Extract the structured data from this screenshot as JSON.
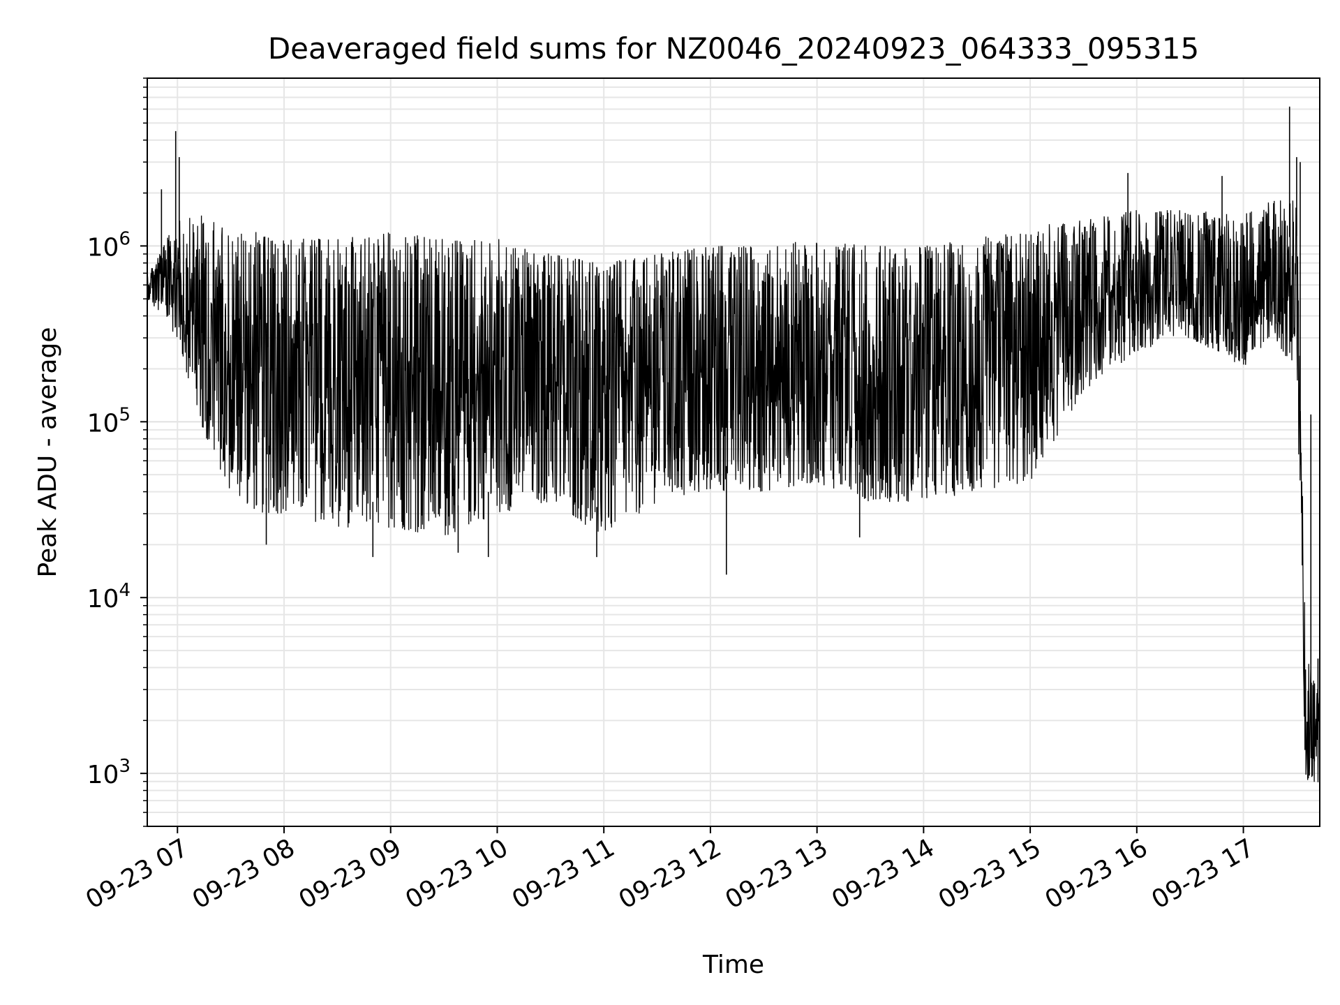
{
  "chart_data": {
    "type": "line",
    "title": "Deaveraged field sums for NZ0046_20240923_064333_095315",
    "xlabel": "Time",
    "ylabel": "Peak ADU - average",
    "y_scale": "log",
    "ylim": [
      500,
      9000000
    ],
    "xlim": [
      "2024-09-23 06:43",
      "2024-09-23 17:43"
    ],
    "grid": true,
    "line_color": "#000000",
    "x_ticks": [
      {
        "value": "2024-09-23 07:00",
        "label": "09-23 07"
      },
      {
        "value": "2024-09-23 08:00",
        "label": "09-23 08"
      },
      {
        "value": "2024-09-23 09:00",
        "label": "09-23 09"
      },
      {
        "value": "2024-09-23 10:00",
        "label": "09-23 10"
      },
      {
        "value": "2024-09-23 11:00",
        "label": "09-23 11"
      },
      {
        "value": "2024-09-23 12:00",
        "label": "09-23 12"
      },
      {
        "value": "2024-09-23 13:00",
        "label": "09-23 13"
      },
      {
        "value": "2024-09-23 14:00",
        "label": "09-23 14"
      },
      {
        "value": "2024-09-23 15:00",
        "label": "09-23 15"
      },
      {
        "value": "2024-09-23 16:00",
        "label": "09-23 16"
      },
      {
        "value": "2024-09-23 17:00",
        "label": "09-23 17"
      }
    ],
    "y_ticks": [
      {
        "value": 1000,
        "base": "10",
        "exp": "3"
      },
      {
        "value": 10000,
        "base": "10",
        "exp": "4"
      },
      {
        "value": 100000,
        "base": "10",
        "exp": "5"
      },
      {
        "value": 1000000,
        "base": "10",
        "exp": "6"
      }
    ],
    "envelope": {
      "x": [
        "2024-09-23 06:43",
        "2024-09-23 07:00",
        "2024-09-23 07:15",
        "2024-09-23 07:30",
        "2024-09-23 07:45",
        "2024-09-23 08:00",
        "2024-09-23 08:30",
        "2024-09-23 09:00",
        "2024-09-23 09:30",
        "2024-09-23 10:00",
        "2024-09-23 10:30",
        "2024-09-23 11:00",
        "2024-09-23 11:30",
        "2024-09-23 12:00",
        "2024-09-23 12:30",
        "2024-09-23 13:00",
        "2024-09-23 13:30",
        "2024-09-23 14:00",
        "2024-09-23 14:30",
        "2024-09-23 15:00",
        "2024-09-23 15:30",
        "2024-09-23 16:00",
        "2024-09-23 16:30",
        "2024-09-23 17:00",
        "2024-09-23 17:15",
        "2024-09-23 17:30",
        "2024-09-23 17:35",
        "2024-09-23 17:43"
      ],
      "high": [
        700000,
        1400000,
        1500000,
        1200000,
        1200000,
        1100000,
        1100000,
        1200000,
        1100000,
        1100000,
        900000,
        800000,
        900000,
        1000000,
        1000000,
        1100000,
        1000000,
        1000000,
        1100000,
        1300000,
        1400000,
        1600000,
        1600000,
        1500000,
        1800000,
        1900000,
        5000,
        3000
      ],
      "low": [
        500000,
        300000,
        80000,
        40000,
        30000,
        30000,
        25000,
        25000,
        22000,
        30000,
        35000,
        22000,
        35000,
        40000,
        40000,
        45000,
        35000,
        35000,
        40000,
        45000,
        150000,
        250000,
        300000,
        200000,
        300000,
        200000,
        900,
        800
      ]
    },
    "spikes": [
      {
        "x": "2024-09-23 06:59",
        "y": 4500000
      },
      {
        "x": "2024-09-23 07:01",
        "y": 3200000
      },
      {
        "x": "2024-09-23 06:51",
        "y": 2100000
      },
      {
        "x": "2024-09-23 07:50",
        "y": 20000
      },
      {
        "x": "2024-09-23 08:50",
        "y": 17000
      },
      {
        "x": "2024-09-23 09:38",
        "y": 18000
      },
      {
        "x": "2024-09-23 09:55",
        "y": 17000
      },
      {
        "x": "2024-09-23 10:56",
        "y": 17000
      },
      {
        "x": "2024-09-23 12:09",
        "y": 13500
      },
      {
        "x": "2024-09-23 13:24",
        "y": 22000
      },
      {
        "x": "2024-09-23 15:55",
        "y": 2600000
      },
      {
        "x": "2024-09-23 16:48",
        "y": 2500000
      },
      {
        "x": "2024-09-23 17:26",
        "y": 6200000
      },
      {
        "x": "2024-09-23 17:30",
        "y": 3200000
      },
      {
        "x": "2024-09-23 17:32",
        "y": 3000000
      },
      {
        "x": "2024-09-23 17:38",
        "y": 110000
      },
      {
        "x": "2024-09-23 17:40",
        "y": 2600
      },
      {
        "x": "2024-09-23 17:42",
        "y": 4500
      }
    ]
  }
}
